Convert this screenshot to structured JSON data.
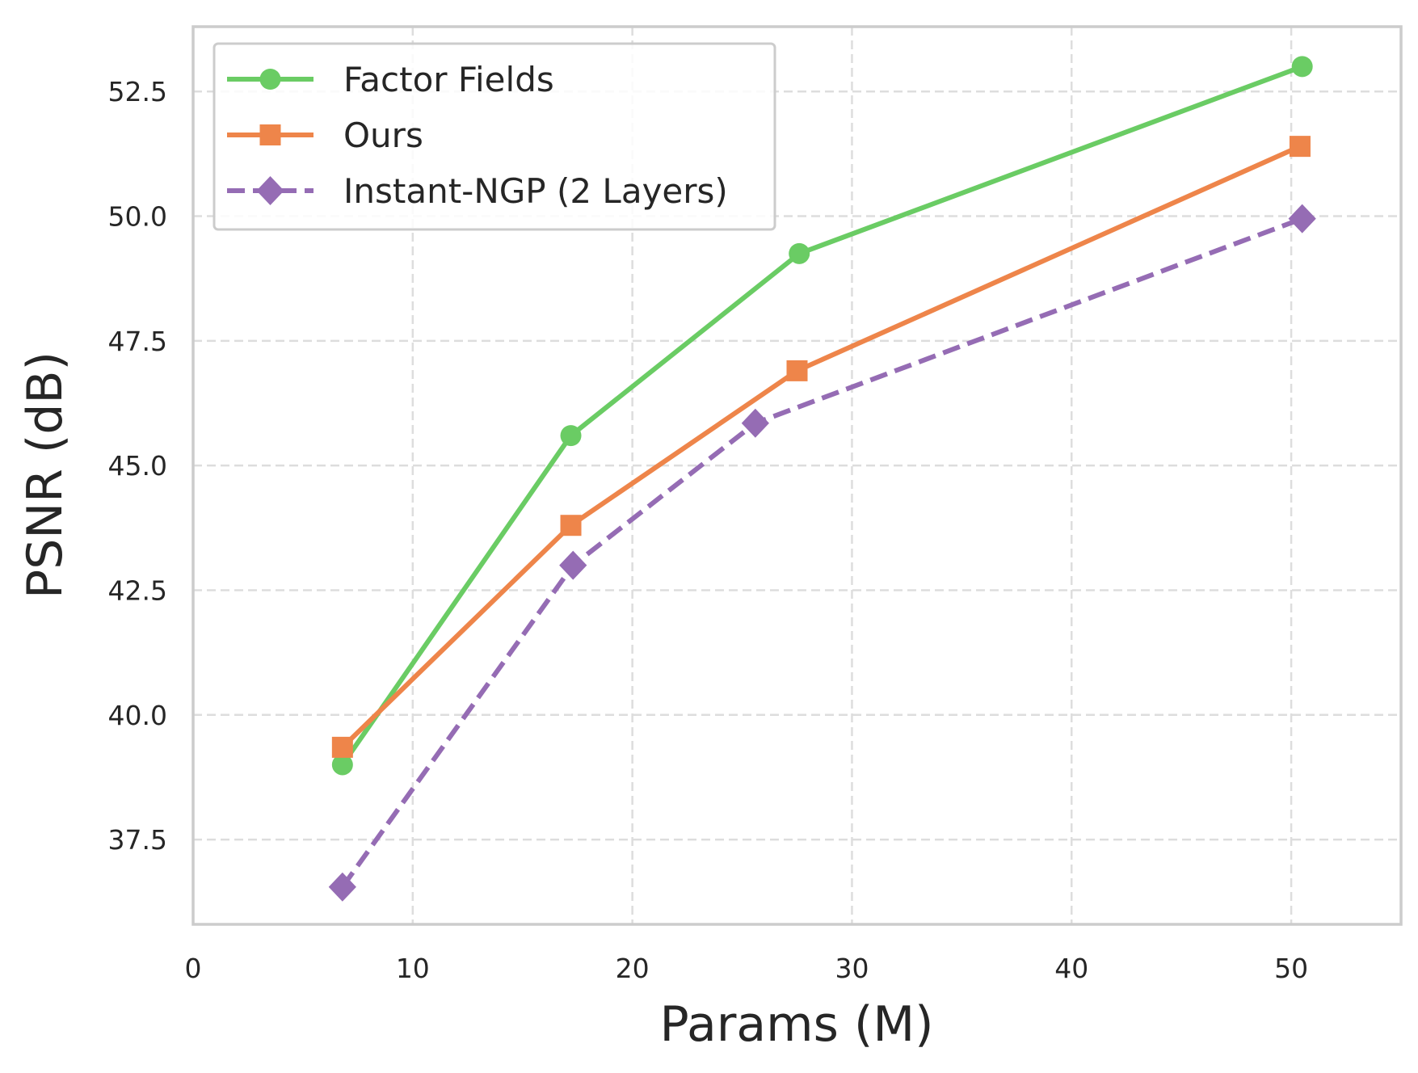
{
  "chart_data": {
    "type": "line",
    "title": "",
    "xlabel": "Params (M)",
    "ylabel": "PSNR (dB)",
    "xlim": [
      0,
      55
    ],
    "ylim": [
      35.8,
      53.8
    ],
    "xticks": [
      0,
      10,
      20,
      30,
      40,
      50
    ],
    "xtick_labels": [
      "0",
      "10",
      "20",
      "30",
      "40",
      "50"
    ],
    "yticks": [
      37.5,
      40.0,
      42.5,
      45.0,
      47.5,
      50.0,
      52.5
    ],
    "ytick_labels": [
      "37.5",
      "40.0",
      "42.5",
      "45.0",
      "47.5",
      "50.0",
      "52.5"
    ],
    "grid": true,
    "legend_position": "top-left",
    "series": [
      {
        "name": "Factor Fields",
        "color": "#6acc64",
        "marker": "circle",
        "linestyle": "solid",
        "x": [
          6.8,
          17.2,
          27.6,
          50.5
        ],
        "y": [
          39.0,
          45.6,
          49.25,
          53.0
        ]
      },
      {
        "name": "Ours",
        "color": "#ee854a",
        "marker": "square",
        "linestyle": "solid",
        "x": [
          6.8,
          17.2,
          27.5,
          50.4
        ],
        "y": [
          39.35,
          43.8,
          46.9,
          51.4
        ]
      },
      {
        "name": "Instant-NGP (2 Layers)",
        "color": "#956cb4",
        "marker": "diamond",
        "linestyle": "dashed",
        "x": [
          6.8,
          17.3,
          25.6,
          50.5
        ],
        "y": [
          36.55,
          43.0,
          45.85,
          49.95
        ]
      }
    ]
  }
}
